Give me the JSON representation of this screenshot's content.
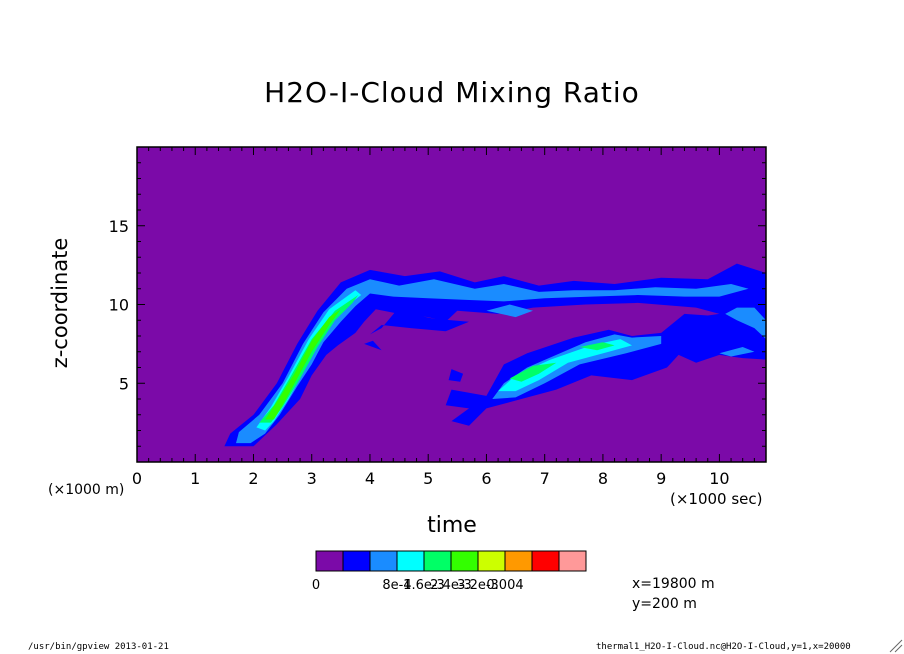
{
  "chart_data": {
    "type": "contour",
    "title": "H2O-I-Cloud Mixing Ratio",
    "xlabel": "time",
    "ylabel": "z-coordinate",
    "x_unit": "(×1000 m)",
    "x_unit_secondary": "(×1000 sec)",
    "xlim": [
      0,
      10.8
    ],
    "ylim": [
      0,
      20
    ],
    "x_ticks": [
      0,
      1,
      2,
      3,
      4,
      5,
      6,
      7,
      8,
      9,
      10
    ],
    "y_ticks": [
      5,
      10,
      15
    ],
    "levels": [
      "0",
      "8e-4",
      "1.6e-3",
      "2.4e-3",
      "3.2e-3",
      "0.004"
    ],
    "level_colors": [
      "#7b0aa8",
      "#0000ff",
      "#1a8cff",
      "#00ffff",
      "#00ff66",
      "#33ff00",
      "#ccff00",
      "#ff9900",
      "#ff0000",
      "#ff9999"
    ],
    "background_color": "#7b0aa8",
    "regions": [
      {
        "level": 1,
        "points": [
          [
            1.5,
            1.0
          ],
          [
            1.6,
            1.8
          ],
          [
            2.0,
            3.0
          ],
          [
            2.4,
            5.0
          ],
          [
            2.75,
            7.5
          ],
          [
            3.1,
            9.6
          ],
          [
            3.5,
            11.4
          ],
          [
            4.0,
            12.2
          ],
          [
            4.6,
            11.8
          ],
          [
            5.2,
            12.1
          ],
          [
            5.8,
            11.4
          ],
          [
            6.3,
            11.8
          ],
          [
            6.9,
            11.2
          ],
          [
            7.5,
            11.5
          ],
          [
            8.2,
            11.3
          ],
          [
            9.0,
            11.7
          ],
          [
            9.8,
            11.6
          ],
          [
            10.3,
            12.6
          ],
          [
            10.8,
            12.0
          ],
          [
            10.8,
            6.5
          ],
          [
            10.4,
            6.6
          ],
          [
            10.0,
            6.8
          ],
          [
            9.6,
            6.3
          ],
          [
            9.3,
            6.8
          ],
          [
            9.1,
            6.0
          ],
          [
            8.5,
            5.2
          ],
          [
            7.8,
            5.5
          ],
          [
            7.2,
            4.6
          ],
          [
            6.6,
            4.0
          ],
          [
            6.0,
            3.4
          ],
          [
            5.7,
            2.3
          ],
          [
            5.4,
            2.6
          ],
          [
            5.7,
            3.4
          ],
          [
            5.3,
            3.6
          ],
          [
            5.4,
            4.6
          ],
          [
            6.0,
            4.2
          ],
          [
            6.3,
            6.2
          ],
          [
            6.7,
            6.9
          ],
          [
            7.5,
            7.9
          ],
          [
            8.1,
            8.4
          ],
          [
            8.5,
            8.0
          ],
          [
            9.0,
            8.2
          ],
          [
            9.4,
            9.4
          ],
          [
            9.8,
            9.3
          ],
          [
            10.0,
            9.4
          ],
          [
            9.6,
            9.8
          ],
          [
            8.6,
            10.1
          ],
          [
            7.7,
            10.0
          ],
          [
            6.8,
            9.8
          ],
          [
            6.2,
            9.4
          ],
          [
            5.5,
            9.6
          ],
          [
            5.3,
            8.9
          ],
          [
            5.0,
            9.2
          ],
          [
            4.5,
            9.4
          ],
          [
            4.1,
            9.7
          ],
          [
            3.9,
            8.9
          ],
          [
            3.75,
            8.2
          ],
          [
            3.45,
            7.4
          ],
          [
            3.25,
            6.8
          ],
          [
            3.0,
            5.5
          ],
          [
            2.8,
            4.0
          ],
          [
            2.4,
            2.4
          ],
          [
            2.0,
            1.0
          ]
        ]
      },
      {
        "level": 1,
        "points": [
          [
            4.45,
            9.6
          ],
          [
            4.2,
            8.5
          ],
          [
            4.0,
            8.1
          ],
          [
            4.2,
            8.7
          ],
          [
            4.7,
            8.5
          ],
          [
            5.3,
            8.3
          ],
          [
            5.7,
            8.9
          ],
          [
            5.1,
            9.1
          ]
        ]
      },
      {
        "level": 1,
        "points": [
          [
            3.9,
            7.5
          ],
          [
            4.2,
            7.1
          ],
          [
            4.05,
            7.7
          ]
        ]
      },
      {
        "level": 1,
        "points": [
          [
            5.4,
            5.9
          ],
          [
            5.6,
            5.6
          ],
          [
            5.55,
            5.1
          ],
          [
            5.35,
            5.2
          ]
        ]
      },
      {
        "level": 2,
        "points": [
          [
            1.7,
            1.2
          ],
          [
            1.75,
            1.9
          ],
          [
            2.1,
            3.0
          ],
          [
            2.5,
            5.0
          ],
          [
            2.85,
            7.5
          ],
          [
            3.2,
            9.5
          ],
          [
            3.6,
            11.0
          ],
          [
            4.0,
            11.6
          ],
          [
            4.5,
            11.2
          ],
          [
            5.1,
            11.6
          ],
          [
            5.8,
            11.0
          ],
          [
            6.3,
            11.3
          ],
          [
            6.9,
            10.8
          ],
          [
            7.5,
            10.9
          ],
          [
            8.2,
            10.9
          ],
          [
            8.9,
            11.1
          ],
          [
            9.6,
            11.0
          ],
          [
            10.2,
            11.3
          ],
          [
            10.5,
            11.0
          ],
          [
            10.0,
            10.5
          ],
          [
            9.4,
            10.5
          ],
          [
            8.6,
            10.6
          ],
          [
            7.8,
            10.5
          ],
          [
            7.0,
            10.4
          ],
          [
            6.3,
            10.2
          ],
          [
            5.6,
            10.3
          ],
          [
            5.0,
            10.4
          ],
          [
            4.4,
            10.5
          ],
          [
            4.0,
            10.7
          ],
          [
            3.75,
            9.9
          ],
          [
            3.5,
            8.9
          ],
          [
            3.2,
            7.6
          ],
          [
            3.0,
            6.2
          ],
          [
            2.75,
            4.8
          ],
          [
            2.45,
            3.0
          ],
          [
            2.2,
            1.8
          ],
          [
            1.95,
            1.2
          ]
        ]
      },
      {
        "level": 2,
        "points": [
          [
            6.0,
            9.6
          ],
          [
            6.4,
            10.0
          ],
          [
            6.8,
            9.6
          ],
          [
            6.5,
            9.2
          ]
        ]
      },
      {
        "level": 2,
        "points": [
          [
            6.1,
            4.0
          ],
          [
            6.3,
            5.0
          ],
          [
            6.7,
            6.0
          ],
          [
            7.2,
            6.8
          ],
          [
            7.7,
            7.6
          ],
          [
            8.2,
            8.1
          ],
          [
            8.5,
            7.9
          ],
          [
            9.0,
            8.0
          ],
          [
            9.0,
            7.5
          ],
          [
            8.4,
            6.9
          ],
          [
            7.6,
            6.2
          ],
          [
            7.0,
            5.0
          ],
          [
            6.5,
            4.1
          ]
        ]
      },
      {
        "level": 2,
        "points": [
          [
            10.1,
            9.4
          ],
          [
            10.3,
            9.0
          ],
          [
            10.6,
            8.5
          ],
          [
            10.8,
            7.8
          ],
          [
            10.8,
            9.0
          ],
          [
            10.6,
            9.8
          ],
          [
            10.3,
            9.8
          ]
        ]
      },
      {
        "level": 2,
        "points": [
          [
            10.0,
            6.9
          ],
          [
            10.4,
            7.3
          ],
          [
            10.6,
            7.0
          ],
          [
            10.2,
            6.7
          ]
        ]
      },
      {
        "level": 3,
        "points": [
          [
            2.05,
            2.2
          ],
          [
            2.3,
            3.5
          ],
          [
            2.6,
            5.4
          ],
          [
            2.95,
            7.8
          ],
          [
            3.3,
            9.7
          ],
          [
            3.75,
            10.9
          ],
          [
            3.85,
            10.6
          ],
          [
            3.5,
            9.6
          ],
          [
            3.2,
            8.0
          ],
          [
            2.9,
            6.0
          ],
          [
            2.6,
            4.0
          ],
          [
            2.35,
            2.6
          ],
          [
            2.2,
            2.0
          ]
        ]
      },
      {
        "level": 3,
        "points": [
          [
            6.2,
            4.5
          ],
          [
            6.5,
            5.5
          ],
          [
            7.1,
            6.5
          ],
          [
            7.8,
            7.4
          ],
          [
            8.3,
            7.8
          ],
          [
            8.5,
            7.4
          ],
          [
            8.1,
            7.0
          ],
          [
            7.4,
            6.3
          ],
          [
            6.9,
            5.2
          ],
          [
            6.5,
            4.5
          ]
        ]
      },
      {
        "level": 4,
        "points": [
          [
            2.1,
            2.5
          ],
          [
            2.35,
            3.6
          ],
          [
            2.65,
            5.5
          ],
          [
            3.0,
            7.8
          ],
          [
            3.4,
            9.6
          ],
          [
            3.8,
            10.6
          ],
          [
            3.7,
            10.1
          ],
          [
            3.4,
            9.0
          ],
          [
            3.1,
            7.3
          ],
          [
            2.8,
            5.3
          ],
          [
            2.5,
            3.5
          ],
          [
            2.3,
            2.5
          ]
        ]
      },
      {
        "level": 4,
        "points": [
          [
            6.4,
            5.3
          ],
          [
            6.8,
            6.1
          ],
          [
            7.2,
            6.3
          ],
          [
            6.9,
            5.6
          ],
          [
            6.6,
            5.1
          ]
        ]
      },
      {
        "level": 4,
        "points": [
          [
            7.6,
            7.3
          ],
          [
            8.0,
            7.6
          ],
          [
            8.2,
            7.4
          ],
          [
            7.9,
            7.1
          ]
        ]
      },
      {
        "level": 5,
        "points": [
          [
            2.2,
            2.7
          ],
          [
            2.45,
            4.1
          ],
          [
            2.7,
            5.6
          ],
          [
            3.0,
            7.7
          ],
          [
            3.3,
            9.2
          ],
          [
            3.5,
            9.7
          ],
          [
            3.3,
            8.7
          ],
          [
            3.0,
            7.0
          ],
          [
            2.75,
            5.3
          ],
          [
            2.5,
            3.6
          ],
          [
            2.35,
            2.7
          ]
        ]
      }
    ]
  },
  "info_lines": [
    "x=19800 m",
    "y=200 m"
  ],
  "footer_left": "/usr/bin/gpview  2013-01-21",
  "footer_right": "thermal1_H2O-I-Cloud.nc@H2O-I-Cloud,y=1,x=20000"
}
